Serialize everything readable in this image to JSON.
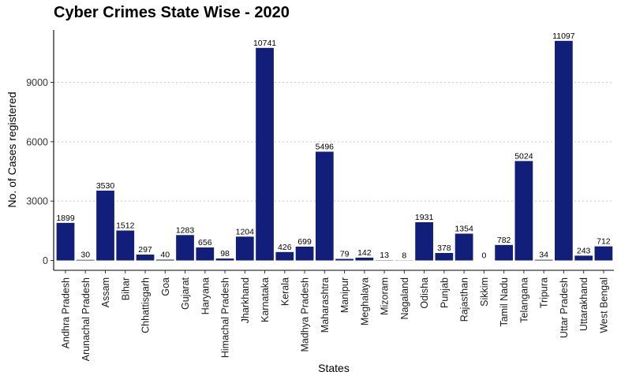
{
  "chart_data": {
    "type": "bar",
    "title": "Cyber Crimes State Wise - 2020",
    "xlabel": "States",
    "ylabel": "No. of Cases registered",
    "ylim": [
      0,
      11700
    ],
    "yticks": [
      0,
      3000,
      6000,
      9000
    ],
    "grid": "horizontal dotted",
    "bar_color": "#111E7A",
    "categories": [
      "Andhra Pradesh",
      "Arunachal Pradesh",
      "Assam",
      "Bihar",
      "Chhattisgarh",
      "Goa",
      "Gujarat",
      "Haryana",
      "Himachal Pradesh",
      "Jharkhand",
      "Karnataka",
      "Kerala",
      "Madhya Pradesh",
      "Maharashtra",
      "Manipur",
      "Meghalaya",
      "Mizoram",
      "Nagaland",
      "Odisha",
      "Punjab",
      "Rajasthan",
      "Sikkim",
      "Tamil Nadu",
      "Telangana",
      "Tripura",
      "Uttar Pradesh",
      "Uttarakhand",
      "West Bengal"
    ],
    "values": [
      1899,
      30,
      3530,
      1512,
      297,
      40,
      1283,
      656,
      98,
      1204,
      10741,
      426,
      699,
      5496,
      79,
      142,
      13,
      8,
      1931,
      378,
      1354,
      0,
      782,
      5024,
      34,
      11097,
      243,
      712
    ]
  }
}
